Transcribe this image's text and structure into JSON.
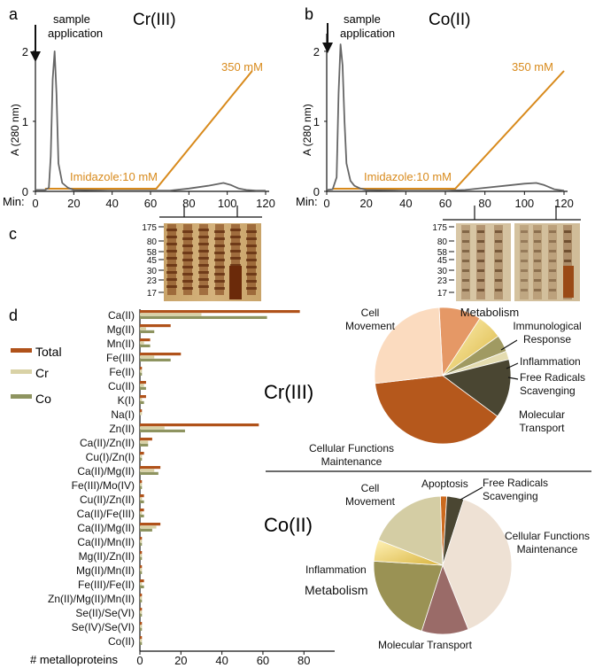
{
  "panel_a": {
    "letter": "a",
    "title": "Cr(III)",
    "annotation": "sample application",
    "ylabel": "A (280 nm)",
    "yticks": [
      "0",
      "1",
      "2"
    ],
    "xlabel": "Min:",
    "xticks": [
      "0",
      "20",
      "40",
      "60",
      "80",
      "100",
      "120"
    ],
    "gradient_start_label": "Imidazole:10 mM",
    "gradient_end_label": "350 mM"
  },
  "panel_b": {
    "letter": "b",
    "title": "Co(II)",
    "annotation": "sample application",
    "ylabel": "A (280 nm)",
    "yticks": [
      "0",
      "1",
      "2"
    ],
    "xlabel": "Min:",
    "xticks": [
      "0",
      "20",
      "40",
      "60",
      "80",
      "100",
      "120"
    ],
    "gradient_start_label": "Imidazole:10 mM",
    "gradient_end_label": "350 mM"
  },
  "panel_c": {
    "letter": "c",
    "markers_left": [
      "175",
      "80",
      "58",
      "45",
      "30",
      "23",
      "17"
    ],
    "markers_right": [
      "175",
      "80",
      "58",
      "45",
      "30",
      "23",
      "17"
    ]
  },
  "panel_d": {
    "letter": "d",
    "legend": [
      "Total",
      "Cr",
      "Co"
    ],
    "xlabel": "# metalloproteins",
    "xticks": [
      "0",
      "20",
      "40",
      "60",
      "80"
    ],
    "pie_cr_title": "Cr(III)",
    "pie_co_title": "Co(II)"
  },
  "colors": {
    "total": "#b0521a",
    "cr": "#d9d2a6",
    "co": "#8e9460",
    "gradient": "#d88a1c",
    "trace": "#666666"
  },
  "chart_data": [
    {
      "type": "line",
      "id": "chromatogram_cr",
      "title": "Cr(III)",
      "xlabel": "Min",
      "ylabel": "A (280 nm)",
      "xlim": [
        0,
        120
      ],
      "ylim": [
        0,
        2.1
      ],
      "series": [
        {
          "name": "A280",
          "x": [
            0,
            5,
            7,
            8,
            9,
            10,
            11,
            12,
            14,
            17,
            20,
            40,
            60,
            70,
            80,
            90,
            98,
            102,
            106,
            110,
            115,
            120
          ],
          "y": [
            0.02,
            0.02,
            0.05,
            0.5,
            1.6,
            2.0,
            1.4,
            0.4,
            0.12,
            0.05,
            0.02,
            0.01,
            0.01,
            0.01,
            0.04,
            0.08,
            0.12,
            0.09,
            0.04,
            0.02,
            0.01,
            0.01
          ]
        },
        {
          "name": "Imidazole (mM)",
          "x": [
            5,
            63,
            113
          ],
          "y": [
            10,
            10,
            350
          ]
        }
      ]
    },
    {
      "type": "line",
      "id": "chromatogram_co",
      "title": "Co(II)",
      "xlabel": "Min",
      "ylabel": "A (280 nm)",
      "xlim": [
        0,
        120
      ],
      "ylim": [
        0,
        2.1
      ],
      "series": [
        {
          "name": "A280",
          "x": [
            0,
            3,
            5,
            6,
            7,
            8,
            9,
            10,
            12,
            14,
            17,
            20,
            40,
            60,
            70,
            80,
            90,
            100,
            106,
            110,
            115,
            120
          ],
          "y": [
            0.02,
            0.03,
            0.2,
            1.4,
            2.1,
            1.8,
            1.0,
            0.4,
            0.15,
            0.08,
            0.04,
            0.02,
            0.01,
            0.01,
            0.02,
            0.05,
            0.08,
            0.11,
            0.12,
            0.09,
            0.03,
            0.01
          ]
        },
        {
          "name": "Imidazole (mM)",
          "x": [
            3,
            65,
            120
          ],
          "y": [
            10,
            10,
            350
          ]
        }
      ]
    },
    {
      "type": "bar",
      "id": "metalloproteins",
      "orientation": "horizontal",
      "xlabel": "# metalloproteins",
      "xlim": [
        0,
        95
      ],
      "categories": [
        "Ca(II)",
        "Mg(II)",
        "Mn(II)",
        "Fe(III)",
        "Fe(II)",
        "Cu(II)",
        "K(I)",
        "Na(I)",
        "Zn(II)",
        "Ca(II)/Zn(II)",
        "Cu(I)/Zn(I)",
        "Ca(II)/Mg(II)",
        "Fe(III)/Mo(IV)",
        "Cu(II)/Zn(II)",
        "Ca(II)/Fe(III)",
        "Ca(II)/Mg(II)",
        "Ca(II)/Mn(II)",
        "Mg(II)/Zn(II)",
        "Mg(II)/Mn(II)",
        "Fe(III)/Fe(II)",
        "Zn(II)/Mg(II)/Mn(II)",
        "Se(II)/Se(VI)",
        "Se(IV)/Se(VI)",
        "Co(II)"
      ],
      "series": [
        {
          "name": "Total",
          "values": [
            78,
            15,
            5,
            20,
            1,
            3,
            3,
            1,
            58,
            6,
            2,
            10,
            1,
            2,
            2,
            10,
            1,
            1,
            1,
            2,
            1,
            1,
            1,
            1
          ]
        },
        {
          "name": "Cr",
          "values": [
            30,
            3,
            2,
            7,
            1,
            2,
            1,
            1,
            12,
            4,
            1,
            7,
            1,
            1,
            1,
            8,
            1,
            1,
            1,
            1,
            1,
            1,
            1,
            1
          ]
        },
        {
          "name": "Co",
          "values": [
            62,
            7,
            5,
            15,
            1,
            3,
            2,
            0,
            22,
            4,
            1,
            9,
            1,
            2,
            2,
            6,
            1,
            1,
            1,
            2,
            1,
            1,
            1,
            1
          ]
        }
      ]
    },
    {
      "type": "pie",
      "id": "pie_cr",
      "title": "Cr(III)",
      "labels": [
        "Metabolism",
        "Immunological Response",
        "Inflammation",
        "Free Radicals Scavenging",
        "Molecular Transport",
        "Cellular Functions Maintenance",
        "Cell Movement"
      ],
      "values": [
        10,
        6,
        4,
        2,
        14,
        38,
        26
      ],
      "colors": [
        "#e59866",
        "#f0d878",
        "#a09a62",
        "#e4dcb0",
        "#4a4632",
        "#b5581c",
        "#fbdbbf"
      ]
    },
    {
      "type": "pie",
      "id": "pie_co",
      "title": "Co(II)",
      "labels": [
        "Apoptosis",
        "Free Radicals Scavenging",
        "Cellular Functions Maintenance",
        "Molecular Transport",
        "Metabolism",
        "Inflammation",
        "Cell Movement"
      ],
      "values": [
        1.5,
        4,
        39,
        11,
        21,
        5,
        18.5
      ],
      "colors": [
        "#cc6a1e",
        "#4a4632",
        "#eee1d4",
        "#9a6b68",
        "#9a9254",
        "#e8cf6a",
        "#d4cda4"
      ]
    }
  ]
}
